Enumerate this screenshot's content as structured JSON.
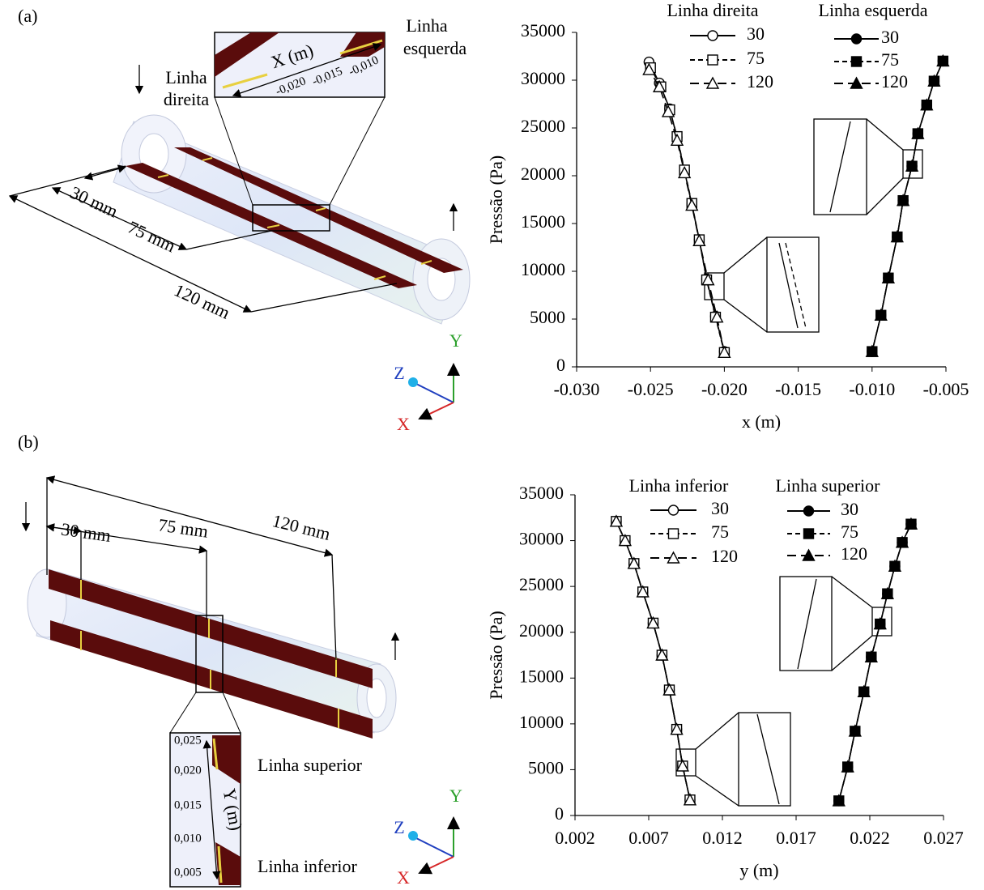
{
  "diagrams": [
    {
      "label": "(a)",
      "line_right": [
        "Linha",
        "direita"
      ],
      "line_left": [
        "Linha",
        "esquerda"
      ],
      "inset_axis": "X (m)",
      "inset_ticks": [
        "-0,010",
        "-0,015",
        "-0,020"
      ],
      "dimensions": [
        "30 mm",
        "75 mm",
        "120 mm"
      ],
      "axes": [
        "Y",
        "Z",
        "X"
      ]
    },
    {
      "label": "(b)",
      "dimensions": [
        "30 mm",
        "75 mm",
        "120 mm"
      ],
      "inset_ticks": [
        "0,025",
        "0,020",
        "0,015",
        "0,010",
        "0,005"
      ],
      "inset_axis": "Y (m)",
      "line_upper": "Linha superior",
      "line_lower": "Linha inferior",
      "axes": [
        "Y",
        "Z",
        "X"
      ]
    }
  ],
  "chart_data": [
    {
      "type": "line",
      "x_label": "x (m)",
      "y_label": "Pressão (Pa)",
      "xlim": [
        -0.03,
        -0.005
      ],
      "xticks": [
        {
          "value": -0.03,
          "label": "-0.030"
        },
        -0.025,
        {
          "value": -0.02,
          "label": "-0.020"
        },
        -0.015,
        {
          "value": -0.01,
          "label": "-0.010"
        },
        -0.005
      ],
      "ylim": [
        0,
        35000
      ],
      "yticks": [
        0,
        5000,
        10000,
        15000,
        20000,
        25000,
        30000,
        35000
      ],
      "groups": [
        {
          "name": "Linha direita",
          "filled": false,
          "series": [
            {
              "name": "30",
              "marker": "circle",
              "line_style": "solid",
              "color": "#000000",
              "x": [
                -0.02,
                -0.0206,
                -0.0212,
                -0.0217,
                -0.0222,
                -0.0227,
                -0.0232,
                -0.0237,
                -0.0244,
                -0.0251
              ],
              "values": [
                1600,
                5300,
                9200,
                13300,
                17000,
                20500,
                24000,
                27000,
                29700,
                31900
              ]
            },
            {
              "name": "75",
              "marker": "square",
              "line_style": "dashed",
              "color": "#000000",
              "x": [
                -0.02,
                -0.0206,
                -0.0212,
                -0.0217,
                -0.0222,
                -0.0227,
                -0.0232,
                -0.0237,
                -0.0243,
                -0.025
              ],
              "values": [
                1500,
                5200,
                9100,
                13300,
                17100,
                20600,
                24100,
                26900,
                29300,
                31300
              ]
            },
            {
              "name": "120",
              "marker": "triangle",
              "line_style": "long-dash",
              "color": "#000000",
              "x": [
                -0.02,
                -0.0205,
                -0.0211,
                -0.0217,
                -0.0222,
                -0.0227,
                -0.0232,
                -0.0238,
                -0.0244,
                -0.0251
              ],
              "values": [
                1500,
                5200,
                9100,
                13200,
                16900,
                20300,
                23700,
                26700,
                29300,
                31100
              ]
            }
          ]
        },
        {
          "name": "Linha esquerda",
          "filled": true,
          "series": [
            {
              "name": "30",
              "marker": "circle",
              "line_style": "solid",
              "color": "#000000",
              "x": [
                -0.01,
                -0.0094,
                -0.0089,
                -0.0083,
                -0.0079,
                -0.0073,
                -0.0069,
                -0.0063,
                -0.0058,
                -0.0052
              ],
              "values": [
                1600,
                5400,
                9300,
                13600,
                17400,
                21000,
                24400,
                27400,
                29900,
                32000
              ]
            },
            {
              "name": "75",
              "marker": "square",
              "line_style": "dashed",
              "color": "#000000",
              "x": [
                -0.01,
                -0.0094,
                -0.0089,
                -0.0083,
                -0.0079,
                -0.0073,
                -0.0069,
                -0.0063,
                -0.0058,
                -0.0052
              ],
              "values": [
                1600,
                5400,
                9300,
                13600,
                17400,
                21000,
                24400,
                27400,
                29900,
                32000
              ]
            },
            {
              "name": "120",
              "marker": "triangle",
              "line_style": "long-dash",
              "color": "#000000",
              "x": [
                -0.01,
                -0.0094,
                -0.0089,
                -0.0083,
                -0.0079,
                -0.0073,
                -0.0069,
                -0.0063,
                -0.0058,
                -0.0052
              ],
              "values": [
                1600,
                5400,
                9300,
                13600,
                17400,
                21000,
                24400,
                27400,
                29900,
                32000
              ]
            }
          ]
        }
      ]
    },
    {
      "type": "line",
      "x_label": "y (m)",
      "y_label": "Pressão (Pa)",
      "xlim": [
        0.002,
        0.027
      ],
      "xticks": [
        0.002,
        0.007,
        0.012,
        0.017,
        0.022,
        0.027
      ],
      "ylim": [
        0,
        35000
      ],
      "yticks": [
        0,
        5000,
        10000,
        15000,
        20000,
        25000,
        30000,
        35000
      ],
      "groups": [
        {
          "name": "Linha inferior",
          "filled": false,
          "series": [
            {
              "name": "30",
              "marker": "circle",
              "line_style": "solid",
              "color": "#000000",
              "x": [
                0.0098,
                0.0093,
                0.0089,
                0.0084,
                0.0079,
                0.0073,
                0.0066,
                0.006,
                0.0054,
                0.0048
              ],
              "values": [
                1700,
                5400,
                9400,
                13700,
                17500,
                21000,
                24400,
                27500,
                30000,
                32100
              ]
            },
            {
              "name": "75",
              "marker": "square",
              "line_style": "dashed",
              "color": "#000000",
              "x": [
                0.0098,
                0.0093,
                0.0089,
                0.0084,
                0.0079,
                0.0073,
                0.0066,
                0.006,
                0.0054,
                0.0048
              ],
              "values": [
                1700,
                5400,
                9400,
                13700,
                17500,
                21000,
                24400,
                27500,
                30000,
                32100
              ]
            },
            {
              "name": "120",
              "marker": "triangle",
              "line_style": "long-dash",
              "color": "#000000",
              "x": [
                0.0098,
                0.0093,
                0.0089,
                0.0084,
                0.0079,
                0.0073,
                0.0066,
                0.006,
                0.0054,
                0.0048
              ],
              "values": [
                1700,
                5400,
                9400,
                13700,
                17500,
                21000,
                24400,
                27500,
                30000,
                32100
              ]
            }
          ]
        },
        {
          "name": "Linha superior",
          "filled": true,
          "series": [
            {
              "name": "30",
              "marker": "circle",
              "line_style": "solid",
              "color": "#000000",
              "x": [
                0.0199,
                0.0205,
                0.021,
                0.0216,
                0.0221,
                0.0227,
                0.0232,
                0.0237,
                0.0242,
                0.0248
              ],
              "values": [
                1600,
                5300,
                9200,
                13500,
                17300,
                20900,
                24200,
                27200,
                29800,
                31800
              ]
            },
            {
              "name": "75",
              "marker": "square",
              "line_style": "dashed",
              "color": "#000000",
              "x": [
                0.0199,
                0.0205,
                0.021,
                0.0216,
                0.0221,
                0.0227,
                0.0232,
                0.0237,
                0.0242,
                0.0248
              ],
              "values": [
                1600,
                5300,
                9200,
                13500,
                17300,
                20900,
                24200,
                27200,
                29800,
                31800
              ]
            },
            {
              "name": "120",
              "marker": "triangle",
              "line_style": "long-dash",
              "color": "#000000",
              "x": [
                0.0199,
                0.0205,
                0.021,
                0.0216,
                0.0221,
                0.0227,
                0.0232,
                0.0237,
                0.0242,
                0.0248
              ],
              "values": [
                1600,
                5300,
                9200,
                13500,
                17300,
                20900,
                24200,
                27200,
                29800,
                31800
              ]
            }
          ]
        }
      ]
    }
  ]
}
